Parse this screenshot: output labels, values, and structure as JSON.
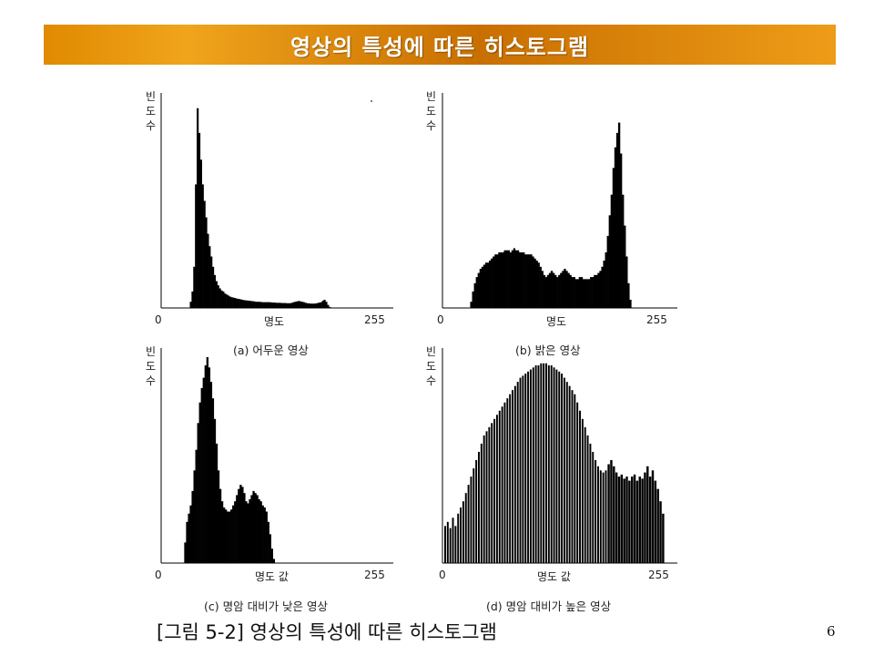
{
  "header": {
    "title": "영상의 특성에 따른 히스토그램"
  },
  "figure_caption": "[그림 5-2] 영상의 특성에 따른 히스토그램",
  "page_number": "6",
  "colors": {
    "title_bar": "#e08a00",
    "title_text": "#ffffff",
    "bars": "#000000"
  },
  "chart_data": [
    {
      "type": "bar",
      "caption": "(a) 어두운 영상",
      "ylabel": [
        "빈",
        "도",
        "수"
      ],
      "xlabel": "명도",
      "x_ticks": [
        "0",
        "255"
      ],
      "xlim": [
        0,
        255
      ],
      "ylim": [
        0,
        100
      ],
      "series": [
        {
          "values": [
            0,
            0,
            0,
            0,
            0,
            0,
            0,
            0,
            0,
            0,
            0,
            0,
            0,
            3,
            8,
            20,
            60,
            97,
            85,
            72,
            60,
            52,
            44,
            36,
            30,
            25,
            20,
            16,
            13,
            11,
            9.5,
            8.5,
            8,
            7,
            6.5,
            6,
            5.5,
            5.2,
            5,
            4.8,
            4.5,
            4.4,
            4.2,
            4,
            3.8,
            3.7,
            3.6,
            3.5,
            3.4,
            3.3,
            3.2,
            3,
            3,
            3,
            2.9,
            2.8,
            2.8,
            2.8,
            2.8,
            2.8,
            2.7,
            2.6,
            2.6,
            2.5,
            2.5,
            2.5,
            2.4,
            2.4,
            2.4,
            2.3,
            2.3,
            2.3,
            2.5,
            2.8,
            3,
            3.2,
            3.4,
            3.2,
            3,
            2.8,
            2.5,
            2.3,
            2.2,
            2.1,
            2.1,
            2.1,
            2.2,
            2.4,
            2.6,
            2.8,
            3.5,
            4,
            3,
            1.5,
            0.5,
            0,
            0,
            0,
            0,
            0,
            0,
            0,
            0,
            0
          ]
        }
      ]
    },
    {
      "type": "bar",
      "caption": "(b) 밝은 영상",
      "ylabel": [
        "빈",
        "도",
        "수"
      ],
      "xlabel": "명도",
      "x_ticks": [
        "0",
        "255"
      ],
      "xlim": [
        0,
        255
      ],
      "ylim": [
        0,
        100
      ],
      "series": [
        {
          "values": [
            0,
            0,
            0,
            0,
            0,
            0,
            0,
            0,
            3,
            8,
            12,
            15,
            17,
            19,
            20,
            21,
            22,
            22,
            23,
            24,
            25,
            26,
            26,
            27,
            27,
            27,
            28,
            28,
            28,
            27,
            28,
            29,
            28,
            28,
            27,
            27,
            27,
            26,
            26,
            26,
            26,
            25,
            24,
            23,
            22,
            20,
            18,
            16,
            15,
            16,
            17,
            18,
            17,
            16,
            15,
            16,
            17,
            18,
            19,
            18,
            17,
            16,
            15,
            15,
            14,
            14,
            15,
            15,
            14,
            14,
            14,
            14,
            15,
            15,
            16,
            16,
            17,
            18,
            20,
            23,
            27,
            35,
            45,
            55,
            68,
            78,
            85,
            90,
            75,
            55,
            40,
            25,
            12,
            4,
            0,
            0,
            0,
            0,
            0,
            0,
            0,
            0,
            0,
            0,
            0,
            0
          ]
        }
      ]
    },
    {
      "type": "bar",
      "caption": "(c) 명암 대비가 낮은 영상",
      "ylabel": [
        "빈",
        "도",
        "수"
      ],
      "xlabel": "명도 값",
      "x_ticks": [
        "0",
        "255"
      ],
      "xlim": [
        0,
        255
      ],
      "ylim": [
        0,
        100
      ],
      "series": [
        {
          "values": [
            0,
            0,
            0,
            0,
            0,
            0,
            0,
            0,
            0,
            0,
            0,
            0,
            10,
            20,
            24,
            28,
            35,
            45,
            55,
            68,
            78,
            85,
            90,
            96,
            100,
            95,
            88,
            80,
            70,
            58,
            45,
            36,
            30,
            27,
            26,
            25,
            25,
            26,
            28,
            30,
            33,
            36,
            38,
            37,
            34,
            30,
            29,
            31,
            33,
            35,
            34,
            33,
            31,
            30,
            28,
            27,
            25,
            20,
            14,
            7,
            2,
            0,
            0,
            0,
            0,
            0,
            0,
            0,
            0,
            0,
            0,
            0,
            0,
            0,
            0,
            0,
            0,
            0,
            0,
            0,
            0,
            0,
            0,
            0,
            0,
            0,
            0,
            0,
            0,
            0,
            0,
            0,
            0,
            0,
            0,
            0,
            0,
            0,
            0,
            0,
            0,
            0,
            0,
            0,
            0,
            0
          ]
        }
      ]
    },
    {
      "type": "bar",
      "caption": "(d) 명암 대비가 높은 영상",
      "ylabel": [
        "빈",
        "도",
        "수"
      ],
      "xlabel": "명도 값",
      "x_ticks": [
        "0",
        "255"
      ],
      "xlim": [
        0,
        255
      ],
      "ylim": [
        0,
        100
      ],
      "series": [
        {
          "values": [
            18,
            20,
            17,
            22,
            18,
            24,
            27,
            30,
            34,
            38,
            42,
            46,
            50,
            54,
            58,
            62,
            64,
            66,
            68,
            70,
            72,
            74,
            76,
            78,
            80,
            82,
            84,
            86,
            88,
            90,
            91,
            92,
            93,
            94,
            95,
            96,
            96,
            97,
            97,
            97,
            96,
            96,
            95,
            94,
            93,
            92,
            90,
            88,
            86,
            84,
            82,
            78,
            74,
            70,
            66,
            62,
            58,
            54,
            50,
            47,
            45,
            44,
            45,
            48,
            50,
            47,
            44,
            42,
            43,
            41,
            42,
            40,
            42,
            43,
            40,
            42,
            41,
            44,
            47,
            42,
            45,
            40,
            36,
            30,
            24
          ]
        }
      ]
    }
  ]
}
